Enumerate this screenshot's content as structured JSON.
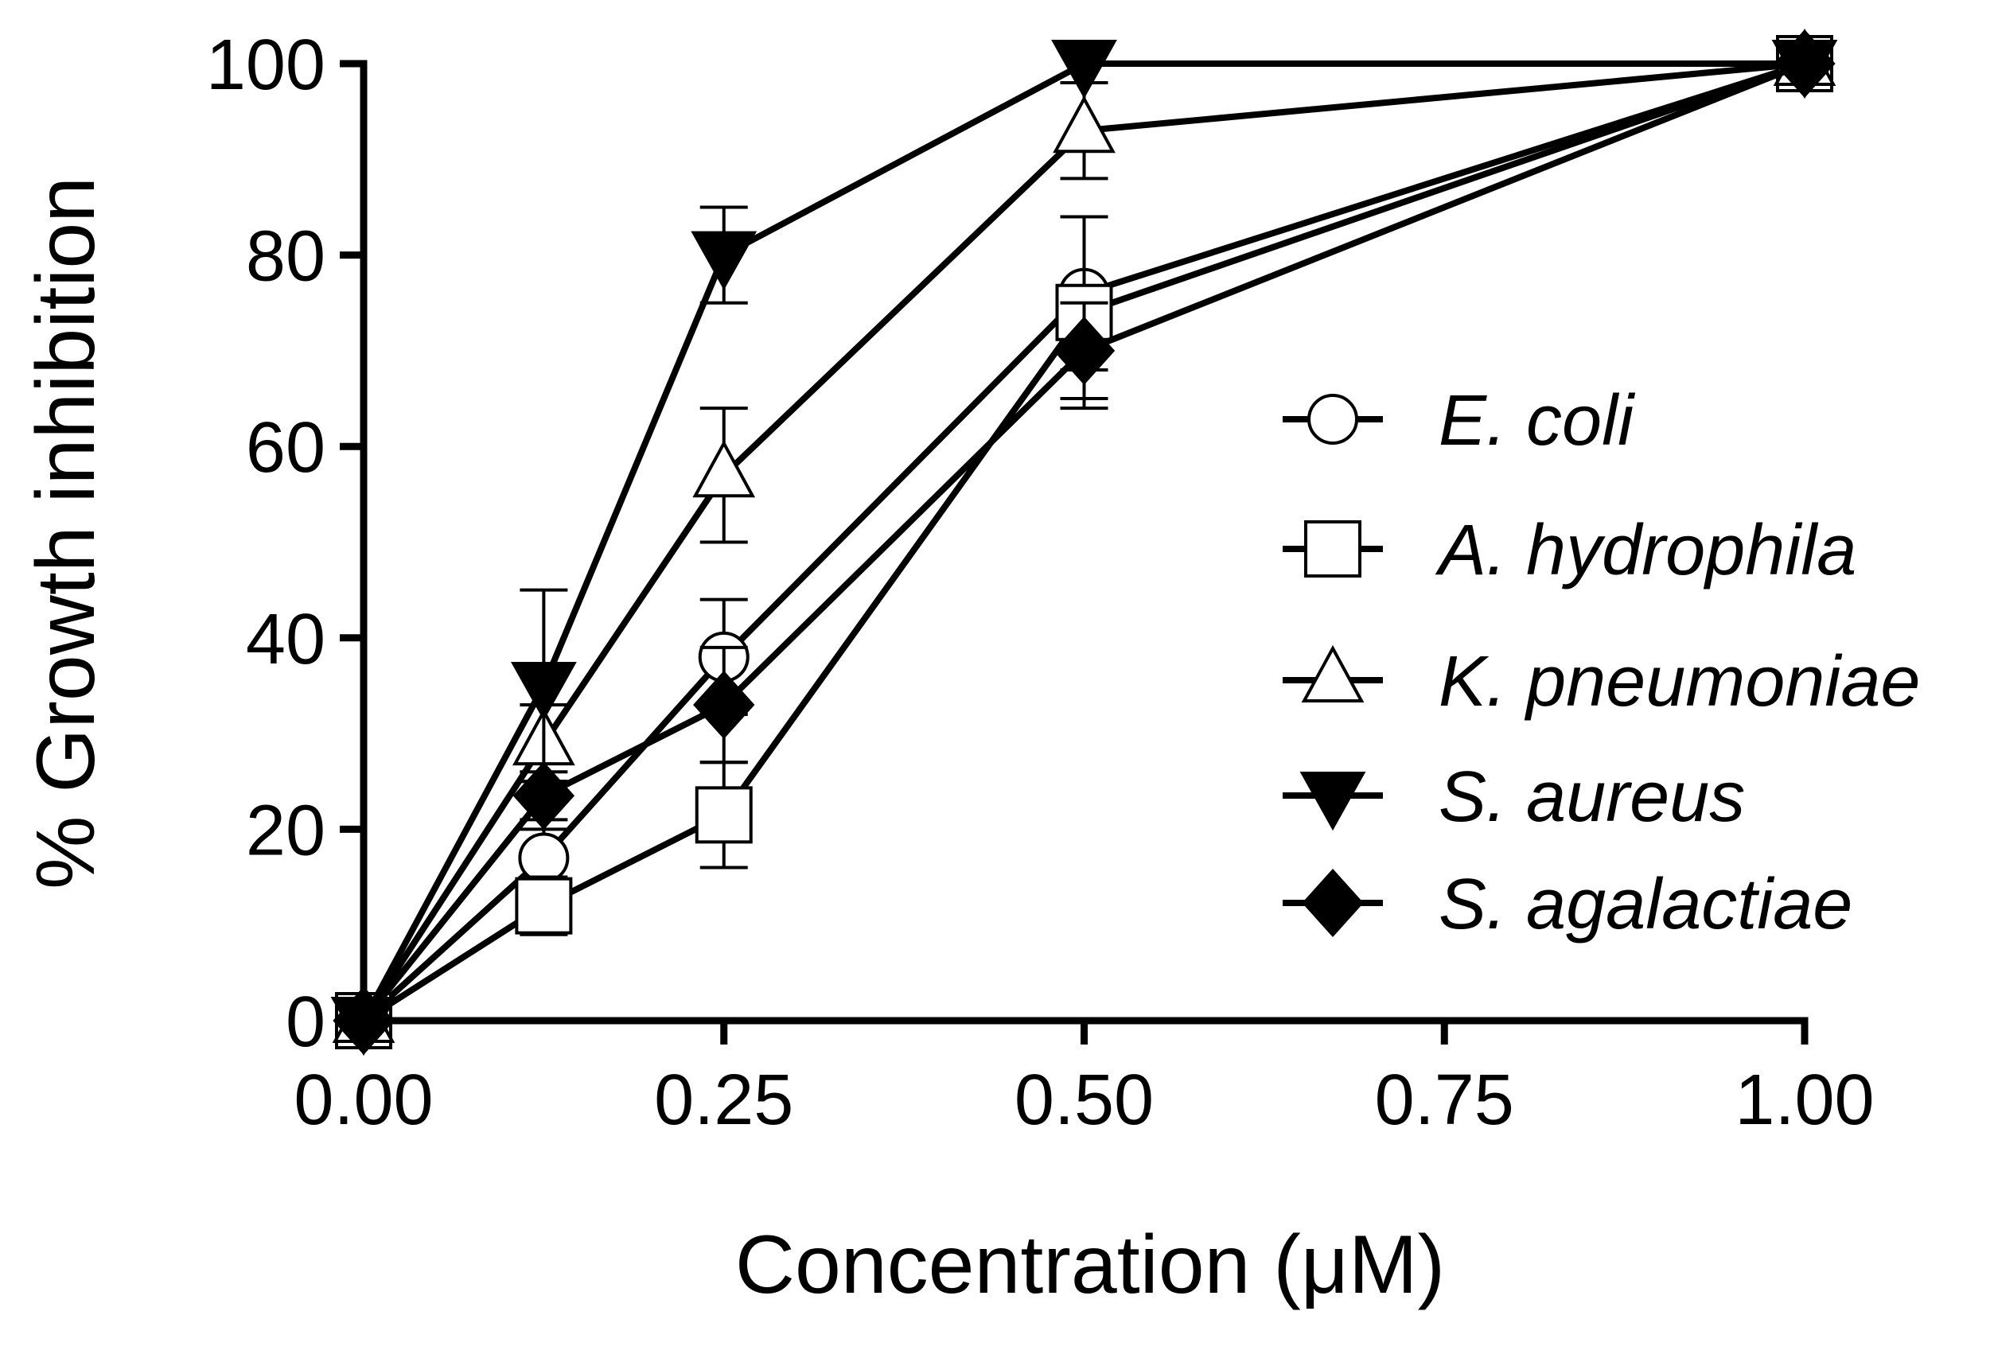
{
  "chart_data": {
    "type": "line",
    "title": "",
    "xlabel": "Concentration (μM)",
    "ylabel": "% Growth inhibition",
    "xlim": [
      0,
      1
    ],
    "ylim": [
      0,
      100
    ],
    "xticks": [
      0,
      0.25,
      0.5,
      0.75,
      1
    ],
    "xtick_labels": [
      "0.00",
      "0.25",
      "0.50",
      "0.75",
      "1.00"
    ],
    "yticks": [
      0,
      20,
      40,
      60,
      80,
      100
    ],
    "ytick_labels": [
      "0",
      "20",
      "40",
      "60",
      "80",
      "100"
    ],
    "x": [
      0,
      0.125,
      0.25,
      0.5,
      1
    ],
    "legend_position": "right",
    "series": [
      {
        "name": "E. coli",
        "marker": "circle-open",
        "values": [
          0,
          17,
          38,
          76,
          100
        ],
        "errors": [
          0,
          3,
          6,
          8,
          0
        ]
      },
      {
        "name": "A. hydrophila",
        "marker": "square-open",
        "values": [
          0,
          12,
          21.5,
          74,
          100
        ],
        "errors": [
          0,
          3,
          5.5,
          10,
          0
        ]
      },
      {
        "name": "K. pneumoniae",
        "marker": "triangle-up-open",
        "values": [
          0,
          29,
          57,
          93,
          100
        ],
        "errors": [
          0,
          4,
          7,
          5,
          0
        ]
      },
      {
        "name": "S. aureus",
        "marker": "triangle-down-filled",
        "values": [
          0,
          35,
          80,
          100,
          100
        ],
        "errors": [
          0,
          10,
          5,
          0,
          0
        ]
      },
      {
        "name": "S. agalactiae",
        "marker": "diamond-filled",
        "values": [
          0,
          23.5,
          33,
          70,
          100
        ],
        "errors": [
          0,
          2.5,
          6,
          5,
          0
        ]
      }
    ]
  }
}
